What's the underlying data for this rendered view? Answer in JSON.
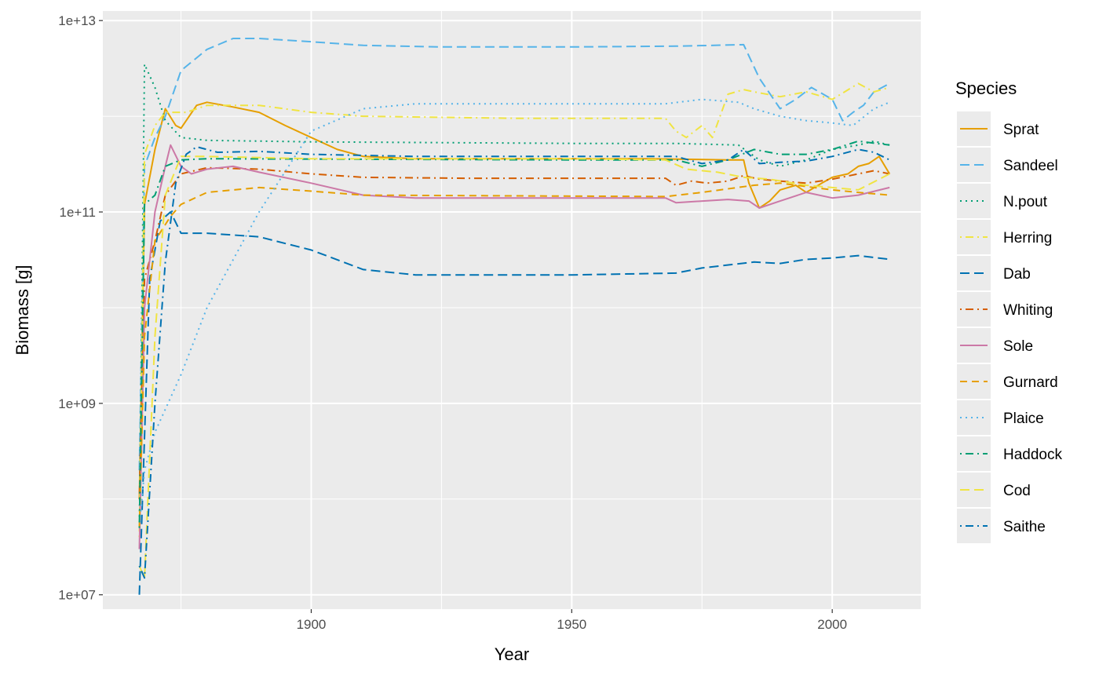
{
  "chart_data": {
    "type": "line",
    "xlabel": "Year",
    "ylabel": "Biomass [g]",
    "y_scale": "log10",
    "xlim": [
      1860,
      2017
    ],
    "ylim_log10": [
      6.85,
      13.1
    ],
    "x_ticks": [
      1900,
      1950,
      2000
    ],
    "x_tick_labels": [
      "1900",
      "1950",
      "2000"
    ],
    "y_ticks": [
      10000000.0,
      1000000000.0,
      100000000000.0,
      10000000000000.0
    ],
    "y_tick_labels": [
      "1e+07",
      "1e+09",
      "1e+11",
      "1e+13"
    ],
    "grid": true,
    "legend": {
      "title": "Species",
      "position": "right"
    },
    "series": [
      {
        "name": "Sprat",
        "color": "#E69F00",
        "dash": "solid",
        "points": [
          [
            1867,
            100000000.0
          ],
          [
            1868,
            120000000000.0
          ],
          [
            1870,
            450000000000.0
          ],
          [
            1872,
            1200000000000.0
          ],
          [
            1874,
            800000000000.0
          ],
          [
            1875,
            750000000000.0
          ],
          [
            1878,
            1300000000000.0
          ],
          [
            1880,
            1400000000000.0
          ],
          [
            1885,
            1250000000000.0
          ],
          [
            1890,
            1100000000000.0
          ],
          [
            1895,
            800000000000.0
          ],
          [
            1900,
            600000000000.0
          ],
          [
            1905,
            450000000000.0
          ],
          [
            1910,
            380000000000.0
          ],
          [
            1920,
            360000000000.0
          ],
          [
            1940,
            360000000000.0
          ],
          [
            1965,
            360000000000.0
          ],
          [
            1980,
            350000000000.0
          ],
          [
            1983,
            350000000000.0
          ],
          [
            1984,
            200000000000.0
          ],
          [
            1986,
            110000000000.0
          ],
          [
            1988,
            130000000000.0
          ],
          [
            1990,
            170000000000.0
          ],
          [
            1993,
            190000000000.0
          ],
          [
            1995,
            160000000000.0
          ],
          [
            1998,
            200000000000.0
          ],
          [
            2000,
            230000000000.0
          ],
          [
            2003,
            250000000000.0
          ],
          [
            2005,
            300000000000.0
          ],
          [
            2007,
            320000000000.0
          ],
          [
            2009,
            380000000000.0
          ],
          [
            2011,
            250000000000.0
          ]
        ]
      },
      {
        "name": "Sandeel",
        "color": "#56B4E9",
        "dash": "long",
        "points": [
          [
            1867,
            200000000.0
          ],
          [
            1868,
            300000000000.0
          ],
          [
            1870,
            600000000000.0
          ],
          [
            1872,
            1000000000000.0
          ],
          [
            1875,
            3000000000000.0
          ],
          [
            1880,
            5000000000000.0
          ],
          [
            1885,
            6500000000000.0
          ],
          [
            1890,
            6500000000000.0
          ],
          [
            1900,
            6000000000000.0
          ],
          [
            1910,
            5500000000000.0
          ],
          [
            1925,
            5300000000000.0
          ],
          [
            1950,
            5300000000000.0
          ],
          [
            1970,
            5400000000000.0
          ],
          [
            1983,
            5600000000000.0
          ],
          [
            1986,
            2500000000000.0
          ],
          [
            1990,
            1200000000000.0
          ],
          [
            1993,
            1500000000000.0
          ],
          [
            1996,
            2000000000000.0
          ],
          [
            2000,
            1500000000000.0
          ],
          [
            2002,
            900000000000.0
          ],
          [
            2004,
            1100000000000.0
          ],
          [
            2006,
            1300000000000.0
          ],
          [
            2008,
            1800000000000.0
          ],
          [
            2011,
            2200000000000.0
          ]
        ]
      },
      {
        "name": "N.pout",
        "color": "#009E73",
        "dash": "dotted",
        "points": [
          [
            1867,
            50000000.0
          ],
          [
            1868,
            3500000000000.0
          ],
          [
            1870,
            2000000000000.0
          ],
          [
            1872,
            900000000000.0
          ],
          [
            1875,
            600000000000.0
          ],
          [
            1880,
            560000000000.0
          ],
          [
            1900,
            540000000000.0
          ],
          [
            1950,
            520000000000.0
          ],
          [
            1970,
            520000000000.0
          ],
          [
            1982,
            500000000000.0
          ],
          [
            1986,
            350000000000.0
          ],
          [
            1990,
            300000000000.0
          ],
          [
            1995,
            350000000000.0
          ],
          [
            2000,
            450000000000.0
          ],
          [
            2005,
            500000000000.0
          ],
          [
            2008,
            550000000000.0
          ],
          [
            2011,
            500000000000.0
          ]
        ]
      },
      {
        "name": "Herring",
        "color": "#F0E442",
        "dash": "dotdash",
        "points": [
          [
            1867,
            40000000.0
          ],
          [
            1868,
            400000000000.0
          ],
          [
            1870,
            800000000000.0
          ],
          [
            1872,
            1100000000000.0
          ],
          [
            1876,
            1100000000000.0
          ],
          [
            1880,
            1300000000000.0
          ],
          [
            1890,
            1300000000000.0
          ],
          [
            1900,
            1100000000000.0
          ],
          [
            1910,
            1000000000000.0
          ],
          [
            1940,
            950000000000.0
          ],
          [
            1968,
            950000000000.0
          ],
          [
            1970,
            700000000000.0
          ],
          [
            1972,
            600000000000.0
          ],
          [
            1975,
            800000000000.0
          ],
          [
            1977,
            600000000000.0
          ],
          [
            1980,
            1700000000000.0
          ],
          [
            1983,
            1900000000000.0
          ],
          [
            1985,
            1800000000000.0
          ],
          [
            1990,
            1600000000000.0
          ],
          [
            1995,
            1800000000000.0
          ],
          [
            2000,
            1500000000000.0
          ],
          [
            2005,
            2200000000000.0
          ],
          [
            2008,
            1800000000000.0
          ],
          [
            2011,
            2000000000000.0
          ]
        ]
      },
      {
        "name": "Dab",
        "color": "#0072B2",
        "dash": "long",
        "points": [
          [
            1867,
            10000000.0
          ],
          [
            1869,
            20000000000.0
          ],
          [
            1871,
            80000000000.0
          ],
          [
            1873,
            100000000000.0
          ],
          [
            1875,
            60000000000.0
          ],
          [
            1880,
            60000000000.0
          ],
          [
            1890,
            55000000000.0
          ],
          [
            1900,
            40000000000.0
          ],
          [
            1910,
            25000000000.0
          ],
          [
            1920,
            22000000000.0
          ],
          [
            1950,
            22000000000.0
          ],
          [
            1970,
            23000000000.0
          ],
          [
            1975,
            26000000000.0
          ],
          [
            1985,
            30000000000.0
          ],
          [
            1990,
            29000000000.0
          ],
          [
            1995,
            32000000000.0
          ],
          [
            2000,
            33000000000.0
          ],
          [
            2005,
            35000000000.0
          ],
          [
            2011,
            32000000000.0
          ]
        ]
      },
      {
        "name": "Whiting",
        "color": "#D55E00",
        "dash": "dotdash",
        "points": [
          [
            1867,
            100000000.0
          ],
          [
            1868,
            20000000000.0
          ],
          [
            1870,
            50000000000.0
          ],
          [
            1872,
            150000000000.0
          ],
          [
            1875,
            250000000000.0
          ],
          [
            1880,
            290000000000.0
          ],
          [
            1890,
            280000000000.0
          ],
          [
            1900,
            250000000000.0
          ],
          [
            1910,
            230000000000.0
          ],
          [
            1930,
            225000000000.0
          ],
          [
            1968,
            225000000000.0
          ],
          [
            1970,
            190000000000.0
          ],
          [
            1973,
            210000000000.0
          ],
          [
            1976,
            200000000000.0
          ],
          [
            1980,
            210000000000.0
          ],
          [
            1983,
            240000000000.0
          ],
          [
            1986,
            220000000000.0
          ],
          [
            1990,
            210000000000.0
          ],
          [
            1995,
            200000000000.0
          ],
          [
            2000,
            220000000000.0
          ],
          [
            2005,
            250000000000.0
          ],
          [
            2008,
            270000000000.0
          ],
          [
            2011,
            250000000000.0
          ]
        ]
      },
      {
        "name": "Sole",
        "color": "#CC79A7",
        "dash": "solid",
        "points": [
          [
            1867,
            30000000.0
          ],
          [
            1868,
            10000000000.0
          ],
          [
            1870,
            100000000000.0
          ],
          [
            1872,
            300000000000.0
          ],
          [
            1873,
            500000000000.0
          ],
          [
            1875,
            300000000000.0
          ],
          [
            1877,
            250000000000.0
          ],
          [
            1880,
            280000000000.0
          ],
          [
            1885,
            300000000000.0
          ],
          [
            1890,
            260000000000.0
          ],
          [
            1900,
            200000000000.0
          ],
          [
            1910,
            150000000000.0
          ],
          [
            1920,
            140000000000.0
          ],
          [
            1968,
            140000000000.0
          ],
          [
            1970,
            125000000000.0
          ],
          [
            1980,
            135000000000.0
          ],
          [
            1984,
            130000000000.0
          ],
          [
            1986,
            110000000000.0
          ],
          [
            1990,
            130000000000.0
          ],
          [
            1995,
            160000000000.0
          ],
          [
            2000,
            140000000000.0
          ],
          [
            2005,
            150000000000.0
          ],
          [
            2011,
            180000000000.0
          ]
        ]
      },
      {
        "name": "Gurnard",
        "color": "#E69F00",
        "dash": "dashed",
        "points": [
          [
            1867,
            50000000.0
          ],
          [
            1868,
            5000000000.0
          ],
          [
            1870,
            50000000000.0
          ],
          [
            1873,
            90000000000.0
          ],
          [
            1875,
            120000000000.0
          ],
          [
            1880,
            160000000000.0
          ],
          [
            1890,
            180000000000.0
          ],
          [
            1900,
            165000000000.0
          ],
          [
            1910,
            150000000000.0
          ],
          [
            1968,
            145000000000.0
          ],
          [
            1975,
            160000000000.0
          ],
          [
            1985,
            190000000000.0
          ],
          [
            1990,
            200000000000.0
          ],
          [
            2000,
            170000000000.0
          ],
          [
            2005,
            160000000000.0
          ],
          [
            2011,
            150000000000.0
          ]
        ]
      },
      {
        "name": "Plaice",
        "color": "#56B4E9",
        "dash": "dotted",
        "points": [
          [
            1867,
            50000000.0
          ],
          [
            1868,
            200000000.0
          ],
          [
            1870,
            500000000.0
          ],
          [
            1875,
            2000000000.0
          ],
          [
            1880,
            10000000000.0
          ],
          [
            1890,
            100000000000.0
          ],
          [
            1900,
            700000000000.0
          ],
          [
            1910,
            1200000000000.0
          ],
          [
            1920,
            1350000000000.0
          ],
          [
            1968,
            1350000000000.0
          ],
          [
            1975,
            1500000000000.0
          ],
          [
            1982,
            1400000000000.0
          ],
          [
            1985,
            1200000000000.0
          ],
          [
            1990,
            1000000000000.0
          ],
          [
            1995,
            900000000000.0
          ],
          [
            2000,
            850000000000.0
          ],
          [
            2004,
            800000000000.0
          ],
          [
            2008,
            1200000000000.0
          ],
          [
            2011,
            1400000000000.0
          ]
        ]
      },
      {
        "name": "Haddock",
        "color": "#009E73",
        "dash": "dotdash",
        "points": [
          [
            1867,
            50000000.0
          ],
          [
            1868,
            120000000000.0
          ],
          [
            1870,
            150000000000.0
          ],
          [
            1872,
            300000000000.0
          ],
          [
            1875,
            350000000000.0
          ],
          [
            1880,
            360000000000.0
          ],
          [
            1950,
            350000000000.0
          ],
          [
            1970,
            350000000000.0
          ],
          [
            1975,
            300000000000.0
          ],
          [
            1980,
            350000000000.0
          ],
          [
            1985,
            450000000000.0
          ],
          [
            1990,
            400000000000.0
          ],
          [
            1995,
            400000000000.0
          ],
          [
            2000,
            450000000000.0
          ],
          [
            2005,
            550000000000.0
          ],
          [
            2011,
            500000000000.0
          ]
        ]
      },
      {
        "name": "Cod",
        "color": "#F0E442",
        "dash": "long",
        "points": [
          [
            1867,
            20000000.0
          ],
          [
            1868,
            15000000.0
          ],
          [
            1870,
            5000000000.0
          ],
          [
            1872,
            150000000000.0
          ],
          [
            1875,
            380000000000.0
          ],
          [
            1880,
            380000000000.0
          ],
          [
            1900,
            360000000000.0
          ],
          [
            1950,
            360000000000.0
          ],
          [
            1968,
            350000000000.0
          ],
          [
            1972,
            280000000000.0
          ],
          [
            1978,
            260000000000.0
          ],
          [
            1983,
            230000000000.0
          ],
          [
            1988,
            220000000000.0
          ],
          [
            1995,
            190000000000.0
          ],
          [
            2000,
            180000000000.0
          ],
          [
            2005,
            170000000000.0
          ],
          [
            2011,
            250000000000.0
          ]
        ]
      },
      {
        "name": "Saithe",
        "color": "#0072B2",
        "dash": "dotdash",
        "points": [
          [
            1867,
            20000000.0
          ],
          [
            1868,
            15000000.0
          ],
          [
            1870,
            1000000000.0
          ],
          [
            1872,
            30000000000.0
          ],
          [
            1874,
            200000000000.0
          ],
          [
            1876,
            400000000000.0
          ],
          [
            1878,
            480000000000.0
          ],
          [
            1882,
            420000000000.0
          ],
          [
            1890,
            430000000000.0
          ],
          [
            1900,
            400000000000.0
          ],
          [
            1920,
            380000000000.0
          ],
          [
            1970,
            380000000000.0
          ],
          [
            1975,
            320000000000.0
          ],
          [
            1980,
            350000000000.0
          ],
          [
            1983,
            450000000000.0
          ],
          [
            1986,
            320000000000.0
          ],
          [
            1990,
            330000000000.0
          ],
          [
            1995,
            340000000000.0
          ],
          [
            2000,
            380000000000.0
          ],
          [
            2005,
            450000000000.0
          ],
          [
            2008,
            420000000000.0
          ],
          [
            2011,
            350000000000.0
          ]
        ]
      }
    ]
  }
}
